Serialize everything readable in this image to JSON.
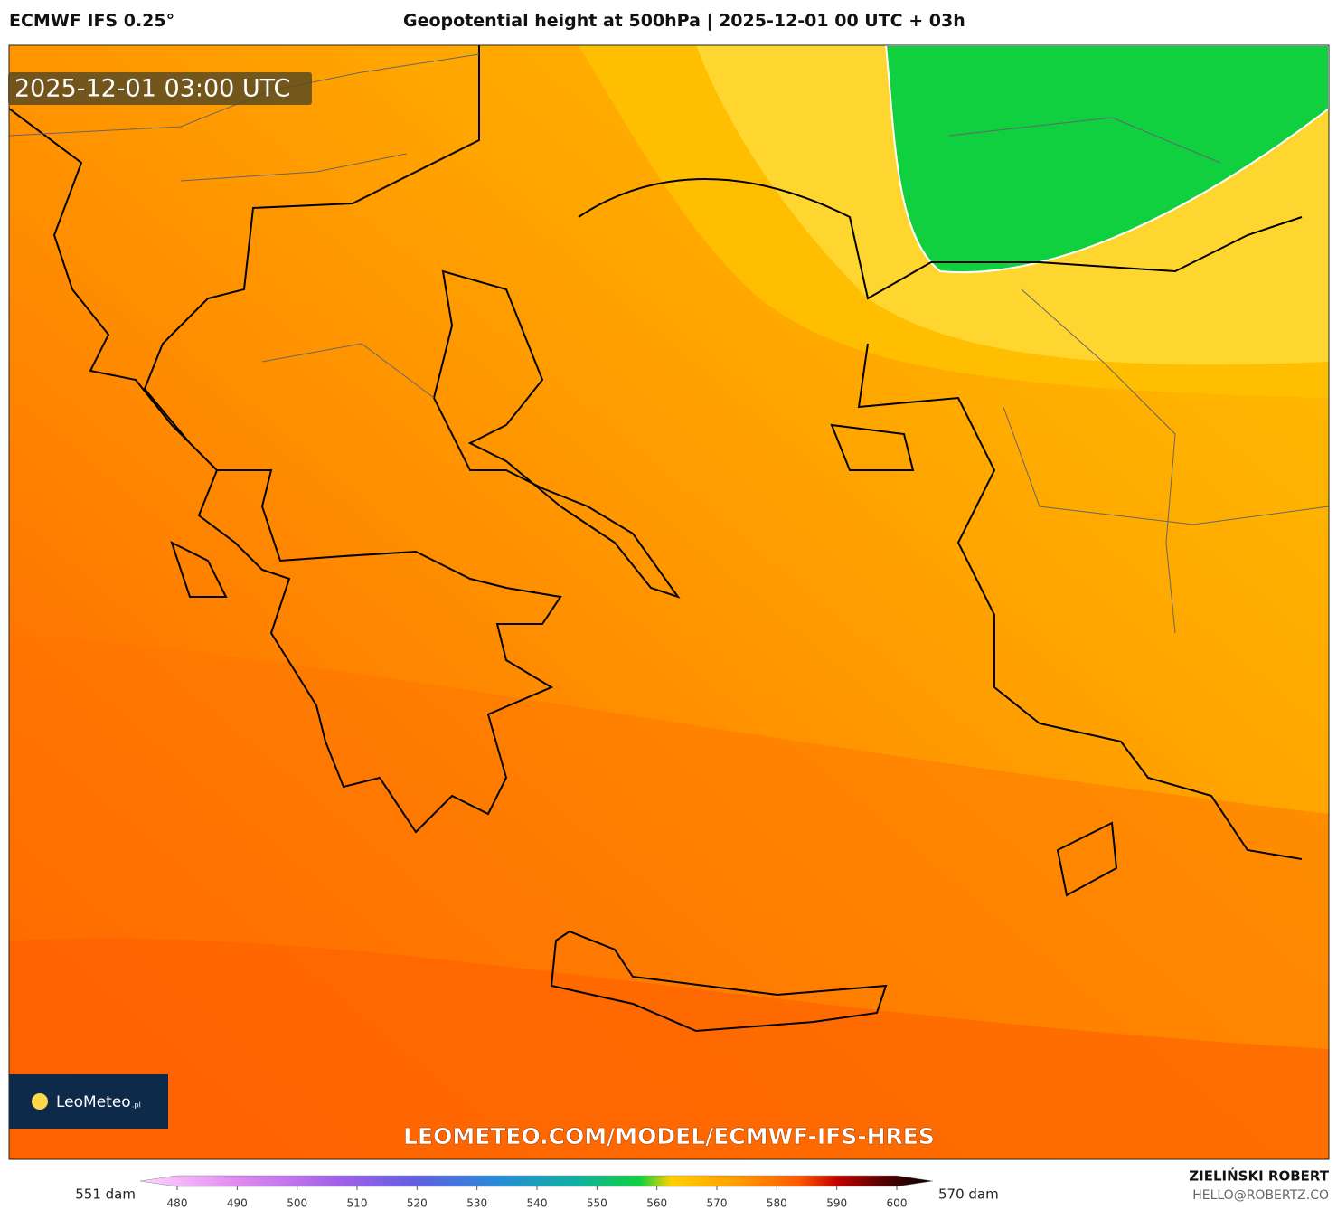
{
  "header": {
    "model": "ECMWF IFS 0.25°",
    "title": "Geopotential height at 500hPa | 2025-12-01 00 UTC + 03h"
  },
  "map": {
    "timestamp": "2025-12-01 03:00 UTC",
    "logo": "LeoMeteo",
    "logo_suffix": ".pl",
    "url": "LEOMETEO.COM/MODEL/ECMWF-IFS-HRES"
  },
  "colorbar": {
    "min_label": "551 dam",
    "max_label": "570 dam",
    "ticks": [
      480,
      490,
      500,
      510,
      520,
      530,
      540,
      550,
      560,
      570,
      580,
      590,
      600
    ]
  },
  "credit": {
    "author": "ZIELIŃSKI ROBERT",
    "email": "HELLO@ROBERTZ.CO"
  }
}
